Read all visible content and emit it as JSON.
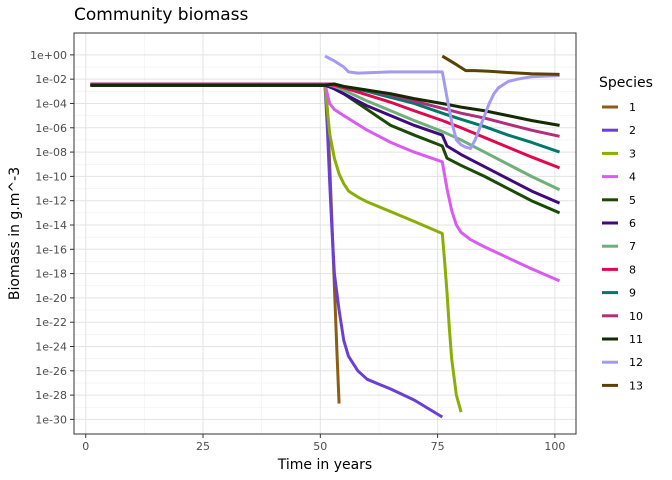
{
  "chart_data": {
    "type": "line",
    "title": "Community biomass",
    "xlabel": "Time in years",
    "ylabel": "Biomass in g.m^-3",
    "xlim": [
      -2.5,
      104.5
    ],
    "ylim_log10": [
      -31.2,
      1.8
    ],
    "y_scale": "log10",
    "grid": true,
    "legend": {
      "title": "Species",
      "placement": "right"
    },
    "x_ticks": [
      0,
      25,
      50,
      75,
      100
    ],
    "x_tick_labels": [
      "0",
      "25",
      "50",
      "75",
      "100"
    ],
    "y_ticks_log10": [
      0,
      -2,
      -4,
      -6,
      -8,
      -10,
      -12,
      -14,
      -16,
      -18,
      -20,
      -22,
      -24,
      -26,
      -28,
      -30
    ],
    "y_tick_labels": [
      "1e+00",
      "1e-02",
      "1e-04",
      "1e-06",
      "1e-08",
      "1e-10",
      "1e-12",
      "1e-14",
      "1e-16",
      "1e-18",
      "1e-20",
      "1e-22",
      "1e-24",
      "1e-26",
      "1e-28",
      "1e-30"
    ],
    "series": [
      {
        "name": "1",
        "color": "#8B5E14",
        "points": [
          [
            1,
            -2.5
          ],
          [
            51,
            -2.5
          ],
          [
            51.5,
            -4.5
          ],
          [
            52,
            -9.0
          ],
          [
            52.5,
            -14.0
          ],
          [
            53,
            -19.0
          ],
          [
            53.5,
            -24.0
          ],
          [
            54,
            -28.7
          ]
        ]
      },
      {
        "name": "2",
        "color": "#6A3FD3",
        "points": [
          [
            1,
            -2.5
          ],
          [
            51,
            -2.5
          ],
          [
            51.5,
            -6.0
          ],
          [
            52,
            -10.5
          ],
          [
            52.5,
            -14.5
          ],
          [
            53,
            -18.0
          ],
          [
            54,
            -21.0
          ],
          [
            55,
            -23.5
          ],
          [
            56,
            -24.8
          ],
          [
            58,
            -26.0
          ],
          [
            60,
            -26.7
          ],
          [
            65,
            -27.5
          ],
          [
            70,
            -28.4
          ],
          [
            76,
            -29.8
          ]
        ]
      },
      {
        "name": "3",
        "color": "#8AAE06",
        "points": [
          [
            1,
            -2.5
          ],
          [
            51,
            -2.5
          ],
          [
            51.5,
            -4.5
          ],
          [
            52,
            -6.5
          ],
          [
            53,
            -8.5
          ],
          [
            54,
            -9.8
          ],
          [
            55,
            -10.6
          ],
          [
            56,
            -11.2
          ],
          [
            58,
            -11.7
          ],
          [
            60,
            -12.1
          ],
          [
            65,
            -12.9
          ],
          [
            70,
            -13.7
          ],
          [
            76,
            -14.7
          ],
          [
            76.5,
            -17.0
          ],
          [
            77,
            -19.5
          ],
          [
            77.5,
            -22.5
          ],
          [
            78,
            -25.0
          ],
          [
            79,
            -28.0
          ],
          [
            80,
            -29.4
          ]
        ]
      },
      {
        "name": "4",
        "color": "#D95BF0",
        "points": [
          [
            1,
            -2.4
          ],
          [
            51,
            -2.4
          ],
          [
            52,
            -4.0
          ],
          [
            53,
            -4.5
          ],
          [
            55,
            -5.0
          ],
          [
            60,
            -6.2
          ],
          [
            65,
            -7.2
          ],
          [
            70,
            -8.0
          ],
          [
            76,
            -8.8
          ],
          [
            77,
            -11.0
          ],
          [
            78,
            -12.8
          ],
          [
            79,
            -14.0
          ],
          [
            80,
            -14.6
          ],
          [
            82,
            -15.2
          ],
          [
            85,
            -15.8
          ],
          [
            90,
            -16.7
          ],
          [
            95,
            -17.6
          ],
          [
            101,
            -18.6
          ]
        ]
      },
      {
        "name": "5",
        "color": "#1A4A06",
        "points": [
          [
            1,
            -2.5
          ],
          [
            51,
            -2.5
          ],
          [
            52,
            -2.6
          ],
          [
            55,
            -3.2
          ],
          [
            60,
            -4.5
          ],
          [
            65,
            -5.8
          ],
          [
            70,
            -6.6
          ],
          [
            76,
            -7.5
          ],
          [
            77,
            -8.5
          ],
          [
            80,
            -9.1
          ],
          [
            85,
            -10.0
          ],
          [
            90,
            -11.0
          ],
          [
            95,
            -12.0
          ],
          [
            101,
            -13.0
          ]
        ]
      },
      {
        "name": "6",
        "color": "#3F0A7D",
        "points": [
          [
            1,
            -2.5
          ],
          [
            51,
            -2.5
          ],
          [
            53,
            -2.8
          ],
          [
            55,
            -3.2
          ],
          [
            60,
            -4.2
          ],
          [
            65,
            -5.0
          ],
          [
            70,
            -5.8
          ],
          [
            76,
            -6.6
          ],
          [
            77,
            -7.5
          ],
          [
            80,
            -8.2
          ],
          [
            85,
            -9.2
          ],
          [
            90,
            -10.2
          ],
          [
            95,
            -11.2
          ],
          [
            101,
            -12.2
          ]
        ]
      },
      {
        "name": "7",
        "color": "#6FAF7A",
        "points": [
          [
            1,
            -2.4
          ],
          [
            51,
            -2.4
          ],
          [
            53,
            -2.6
          ],
          [
            55,
            -2.9
          ],
          [
            60,
            -3.8
          ],
          [
            65,
            -4.6
          ],
          [
            70,
            -5.4
          ],
          [
            76,
            -6.3
          ],
          [
            80,
            -7.0
          ],
          [
            85,
            -8.0
          ],
          [
            90,
            -9.0
          ],
          [
            95,
            -10.0
          ],
          [
            101,
            -11.1
          ]
        ]
      },
      {
        "name": "8",
        "color": "#E0094F",
        "points": [
          [
            1,
            -2.4
          ],
          [
            51,
            -2.4
          ],
          [
            53,
            -2.5
          ],
          [
            55,
            -2.7
          ],
          [
            60,
            -3.3
          ],
          [
            65,
            -3.9
          ],
          [
            70,
            -4.6
          ],
          [
            76,
            -5.4
          ],
          [
            80,
            -6.0
          ],
          [
            85,
            -6.8
          ],
          [
            90,
            -7.6
          ],
          [
            95,
            -8.4
          ],
          [
            101,
            -9.3
          ]
        ]
      },
      {
        "name": "9",
        "color": "#00796B",
        "points": [
          [
            1,
            -2.4
          ],
          [
            51,
            -2.4
          ],
          [
            53,
            -2.4
          ],
          [
            55,
            -2.6
          ],
          [
            60,
            -3.0
          ],
          [
            65,
            -3.5
          ],
          [
            70,
            -4.0
          ],
          [
            76,
            -4.8
          ],
          [
            80,
            -5.3
          ],
          [
            85,
            -5.9
          ],
          [
            90,
            -6.6
          ],
          [
            95,
            -7.2
          ],
          [
            101,
            -8.0
          ]
        ]
      },
      {
        "name": "10",
        "color": "#B12E7A",
        "points": [
          [
            1,
            -2.4
          ],
          [
            51,
            -2.4
          ],
          [
            53,
            -2.4
          ],
          [
            55,
            -2.6
          ],
          [
            60,
            -2.9
          ],
          [
            65,
            -3.3
          ],
          [
            70,
            -3.8
          ],
          [
            76,
            -4.4
          ],
          [
            80,
            -4.8
          ],
          [
            85,
            -5.2
          ],
          [
            90,
            -5.7
          ],
          [
            95,
            -6.2
          ],
          [
            101,
            -6.7
          ]
        ]
      },
      {
        "name": "11",
        "color": "#142A00",
        "points": [
          [
            1,
            -2.5
          ],
          [
            51,
            -2.5
          ],
          [
            53,
            -2.4
          ],
          [
            55,
            -2.6
          ],
          [
            60,
            -2.9
          ],
          [
            65,
            -3.2
          ],
          [
            70,
            -3.6
          ],
          [
            76,
            -4.0
          ],
          [
            80,
            -4.3
          ],
          [
            85,
            -4.6
          ],
          [
            90,
            -5.0
          ],
          [
            95,
            -5.4
          ],
          [
            101,
            -5.8
          ]
        ]
      },
      {
        "name": "12",
        "color": "#A49AF2",
        "points": [
          [
            51,
            -0.1
          ],
          [
            53,
            -0.5
          ],
          [
            55,
            -1.0
          ],
          [
            56,
            -1.4
          ],
          [
            58,
            -1.5
          ],
          [
            65,
            -1.4
          ],
          [
            70,
            -1.4
          ],
          [
            76,
            -1.4
          ],
          [
            77,
            -3.5
          ],
          [
            78,
            -5.5
          ],
          [
            79,
            -7.0
          ],
          [
            80,
            -7.4
          ],
          [
            81,
            -7.6
          ],
          [
            82,
            -7.7
          ],
          [
            83,
            -7.0
          ],
          [
            84,
            -6.0
          ],
          [
            85,
            -5.0
          ],
          [
            86,
            -4.0
          ],
          [
            87,
            -3.2
          ],
          [
            88,
            -2.7
          ],
          [
            90,
            -2.2
          ],
          [
            92,
            -2.0
          ],
          [
            95,
            -1.8
          ],
          [
            101,
            -1.7
          ]
        ]
      },
      {
        "name": "13",
        "color": "#5C4200",
        "points": [
          [
            76,
            -0.1
          ],
          [
            79,
            -0.8
          ],
          [
            81,
            -1.3
          ],
          [
            83,
            -1.3
          ],
          [
            86,
            -1.35
          ],
          [
            90,
            -1.45
          ],
          [
            95,
            -1.55
          ],
          [
            101,
            -1.6
          ]
        ]
      }
    ]
  }
}
